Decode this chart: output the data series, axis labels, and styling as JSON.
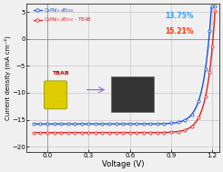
{
  "title": "",
  "xlabel": "Voltage (V)",
  "ylabel": "Current density (mA cm⁻²)",
  "xlim": [
    -0.15,
    1.25
  ],
  "ylim": [
    -21,
    6.5
  ],
  "xticks": [
    0.0,
    0.3,
    0.6,
    0.9,
    1.2
  ],
  "yticks": [
    -20,
    -15,
    -10,
    -5,
    0,
    5
  ],
  "blue_label": "CsPbI$_{2.4}$Br$_{0.6}$",
  "blue_pct": "13.75%",
  "red_label": "CsPbI$_{2.4}$Br$_{0.6}$ - TBAB",
  "red_pct": "15.21%",
  "blue_color": "#1a4fd6",
  "red_color": "#e82020",
  "blue_color_pct": "#3399ff",
  "red_color_pct": "#ff3300",
  "bg_color": "#f0f0f0",
  "grid_color": "#aaaaaa",
  "jsc_blue": -15.8,
  "jsc_red": -17.4,
  "voc_blue": 1.175,
  "voc_red": 1.205
}
